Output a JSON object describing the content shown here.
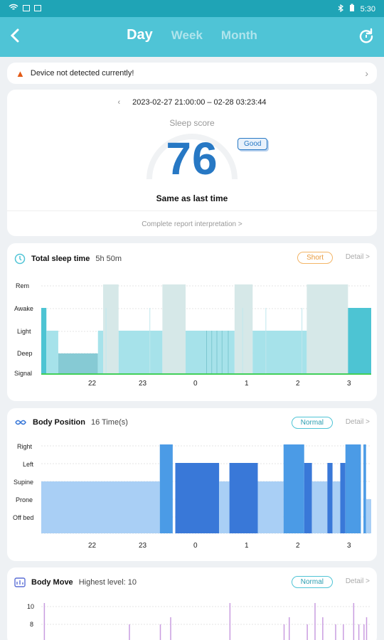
{
  "status_bar": {
    "time": "5:30"
  },
  "header": {
    "back_icon": "back-chevron-icon",
    "tabs": [
      "Day",
      "Week",
      "Month"
    ],
    "active_tab": "Day",
    "refresh_icon": "refresh-icon"
  },
  "alert": {
    "text": "Device not detected currently!",
    "icon": "warning-icon"
  },
  "score_card": {
    "date_range": "2023-02-27 21:00:00 – 02-28 03:23:44",
    "label": "Sleep score",
    "value": "76",
    "badge": "Good",
    "comparison": "Same as last time",
    "report_link": "Complete report interpretation >"
  },
  "sleep_time": {
    "title": "Total sleep time",
    "value": "5h 50m",
    "status": "Short",
    "detail": "Detail >",
    "y_labels": [
      "Rem",
      "Awake",
      "Light",
      "Deep",
      "Signal"
    ],
    "x_labels": [
      "22",
      "23",
      "0",
      "1",
      "2",
      "3"
    ],
    "colors": {
      "rem": "#d6e8e8",
      "awake": "#4dc4d3",
      "light": "#a6e2ea",
      "deep": "#86cad4",
      "signal": "#42cf5a"
    },
    "chart_data": {
      "type": "area",
      "x_unit": "hour",
      "x_range": [
        21.0,
        3.4
      ],
      "stages": [
        "Rem",
        "Awake",
        "Light",
        "Deep"
      ],
      "segments": [
        {
          "stage": "Awake",
          "start": 21.0,
          "end": 21.1
        },
        {
          "stage": "Light",
          "start": 21.1,
          "end": 21.33
        },
        {
          "stage": "Deep",
          "start": 21.33,
          "end": 22.1
        },
        {
          "stage": "Light",
          "start": 22.1,
          "end": 22.2
        },
        {
          "stage": "Rem",
          "start": 22.2,
          "end": 22.5
        },
        {
          "stage": "Light",
          "start": 22.5,
          "end": 23.35
        },
        {
          "stage": "Rem",
          "start": 23.35,
          "end": 23.8
        },
        {
          "stage": "Light",
          "start": 23.8,
          "end": 0.75
        },
        {
          "stage": "Rem",
          "start": 0.75,
          "end": 1.1
        },
        {
          "stage": "Light",
          "start": 1.1,
          "end": 2.15
        },
        {
          "stage": "Rem",
          "start": 2.15,
          "end": 2.95
        },
        {
          "stage": "Awake",
          "start": 2.95,
          "end": 3.4
        }
      ]
    }
  },
  "body_position": {
    "title": "Body Position",
    "value": "16 Time(s)",
    "status": "Normal",
    "detail": "Detail >",
    "y_labels": [
      "Right",
      "Left",
      "Supine",
      "Prone",
      "Off bed"
    ],
    "x_labels": [
      "22",
      "23",
      "0",
      "1",
      "2",
      "3"
    ],
    "colors": {
      "right": "#4b9be6",
      "left": "#3978d8",
      "supine": "#a9cff5",
      "prone": "#a9cff5"
    },
    "chart_data": {
      "type": "area",
      "x_unit": "hour",
      "x_range": [
        21.0,
        3.4
      ],
      "positions": [
        "Right",
        "Left",
        "Supine",
        "Prone",
        "Off bed"
      ],
      "segments": [
        {
          "position": "Supine",
          "start": 21.0,
          "end": 23.3
        },
        {
          "position": "Right",
          "start": 23.3,
          "end": 23.55
        },
        {
          "position": "Left",
          "start": 23.6,
          "end": 0.45
        },
        {
          "position": "Supine",
          "start": 0.45,
          "end": 0.65
        },
        {
          "position": "Left",
          "start": 0.65,
          "end": 1.2
        },
        {
          "position": "Supine",
          "start": 1.2,
          "end": 1.7
        },
        {
          "position": "Right",
          "start": 1.7,
          "end": 2.1
        },
        {
          "position": "Left",
          "start": 2.1,
          "end": 2.25
        },
        {
          "position": "Supine",
          "start": 2.25,
          "end": 2.55
        },
        {
          "position": "Left",
          "start": 2.55,
          "end": 2.65
        },
        {
          "position": "Supine",
          "start": 2.65,
          "end": 2.8
        },
        {
          "position": "Left",
          "start": 2.8,
          "end": 2.9
        },
        {
          "position": "Right",
          "start": 2.9,
          "end": 3.2
        },
        {
          "position": "Right",
          "start": 3.25,
          "end": 3.3
        },
        {
          "position": "Prone",
          "start": 3.3,
          "end": 3.4
        }
      ]
    }
  },
  "body_move": {
    "title": "Body Move",
    "value": "Highest level: 10",
    "status": "Normal",
    "detail": "Detail >",
    "y_labels": [
      "10",
      "8"
    ],
    "color": "#c99de0"
  }
}
